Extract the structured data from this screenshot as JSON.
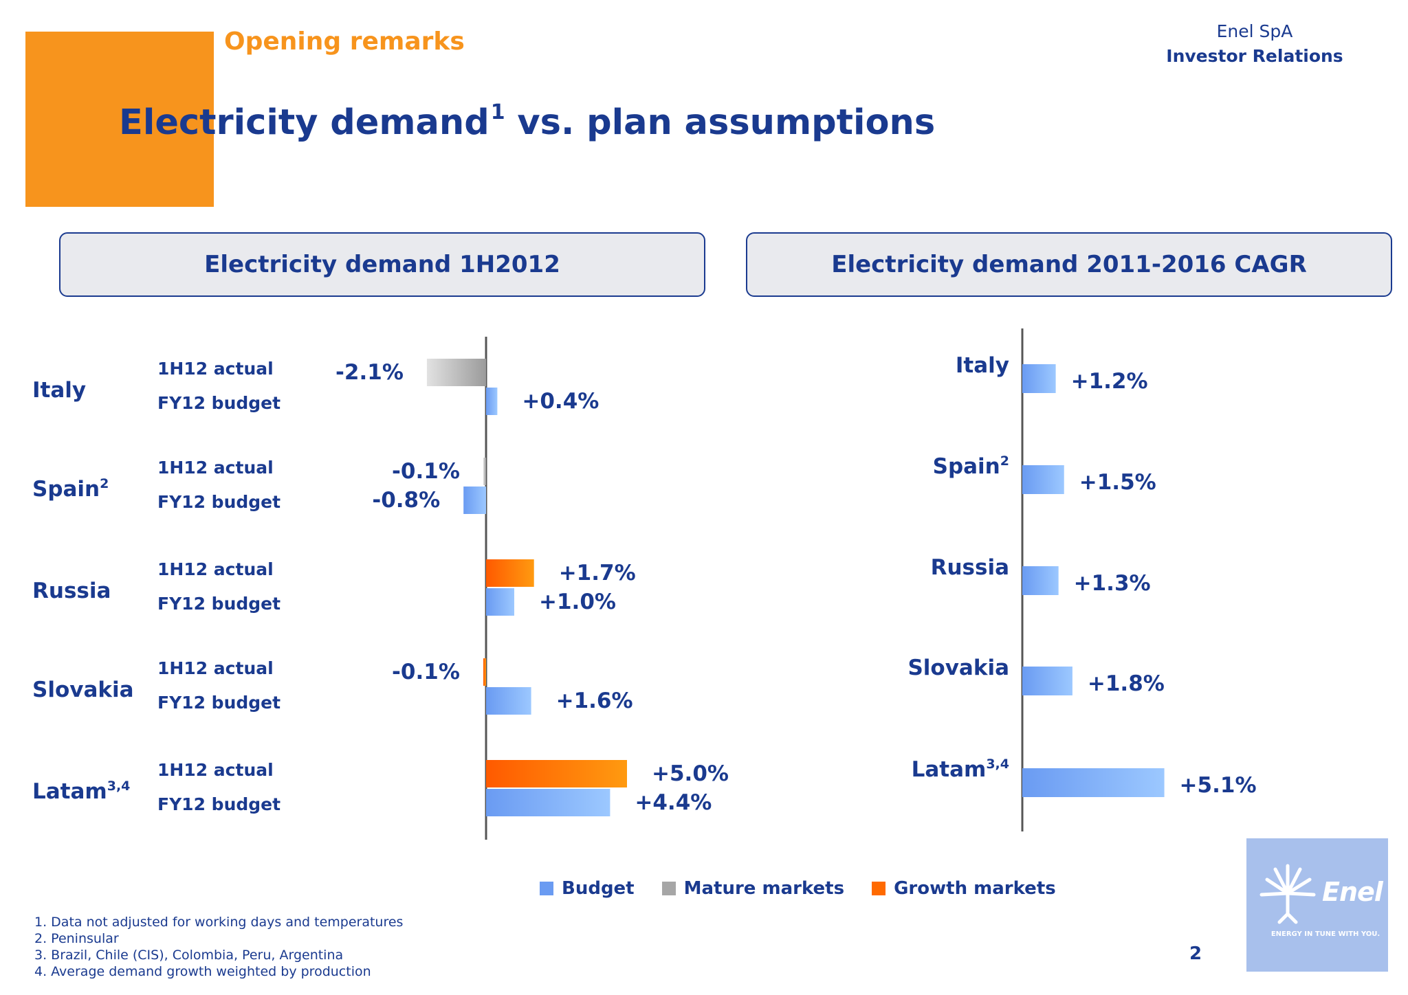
{
  "header": {
    "section": "Opening remarks",
    "company": "Enel SpA",
    "department": "Investor Relations",
    "title": "Electricity demand",
    "title_sup": "1",
    "title_rest": "vs. plan assumptions"
  },
  "colors": {
    "primary_text": "#1a3a8f",
    "accent_orange": "#f7941d",
    "budget": "#6a9bf2",
    "mature_markets": "#a6a6a6",
    "growth_markets": "#ff6a00"
  },
  "chart_data": [
    {
      "type": "bar",
      "orientation": "horizontal",
      "title": "Electricity demand 1H2012",
      "categories": [
        "Italy",
        "Spain",
        "Russia",
        "Slovakia",
        "Latam"
      ],
      "category_sup": [
        "",
        "2",
        "",
        "",
        "3,4"
      ],
      "series": [
        {
          "name": "1H12 actual",
          "values": [
            -2.1,
            -0.1,
            1.7,
            -0.1,
            5.0
          ],
          "market": [
            "mature",
            "mature",
            "growth",
            "growth",
            "growth"
          ]
        },
        {
          "name": "FY12 budget",
          "values": [
            0.4,
            -0.8,
            1.0,
            1.6,
            4.4
          ]
        }
      ],
      "labels": [
        [
          "-2.1%",
          "+0.4%"
        ],
        [
          "-0.1%",
          "-0.8%"
        ],
        [
          "+1.7%",
          "+1.0%"
        ],
        [
          "-0.1%",
          "+1.6%"
        ],
        [
          "+5.0%",
          "+4.4%"
        ]
      ],
      "unit": "%"
    },
    {
      "type": "bar",
      "orientation": "horizontal",
      "title": "Electricity demand 2011-2016 CAGR",
      "categories": [
        "Italy",
        "Spain",
        "Russia",
        "Slovakia",
        "Latam"
      ],
      "category_sup": [
        "",
        "2",
        "",
        "",
        "3,4"
      ],
      "values": [
        1.2,
        1.5,
        1.3,
        1.8,
        5.1
      ],
      "labels": [
        "+1.2%",
        "+1.5%",
        "+1.3%",
        "+1.8%",
        "+5.1%"
      ],
      "unit": "%"
    }
  ],
  "legend": [
    {
      "label": "Budget",
      "color": "#6a9bf2"
    },
    {
      "label": "Mature markets",
      "color": "#a6a6a6"
    },
    {
      "label": "Growth markets",
      "color": "#ff6a00"
    }
  ],
  "footnotes": [
    "1. Data not adjusted for working days and temperatures",
    "2. Peninsular",
    "3. Brazil, Chile (CIS), Colombia, Peru, Argentina",
    "4. Average demand growth weighted by production"
  ],
  "page_number": "2",
  "logo": {
    "name": "Enel",
    "tagline": "ENERGY IN TUNE WITH YOU."
  }
}
